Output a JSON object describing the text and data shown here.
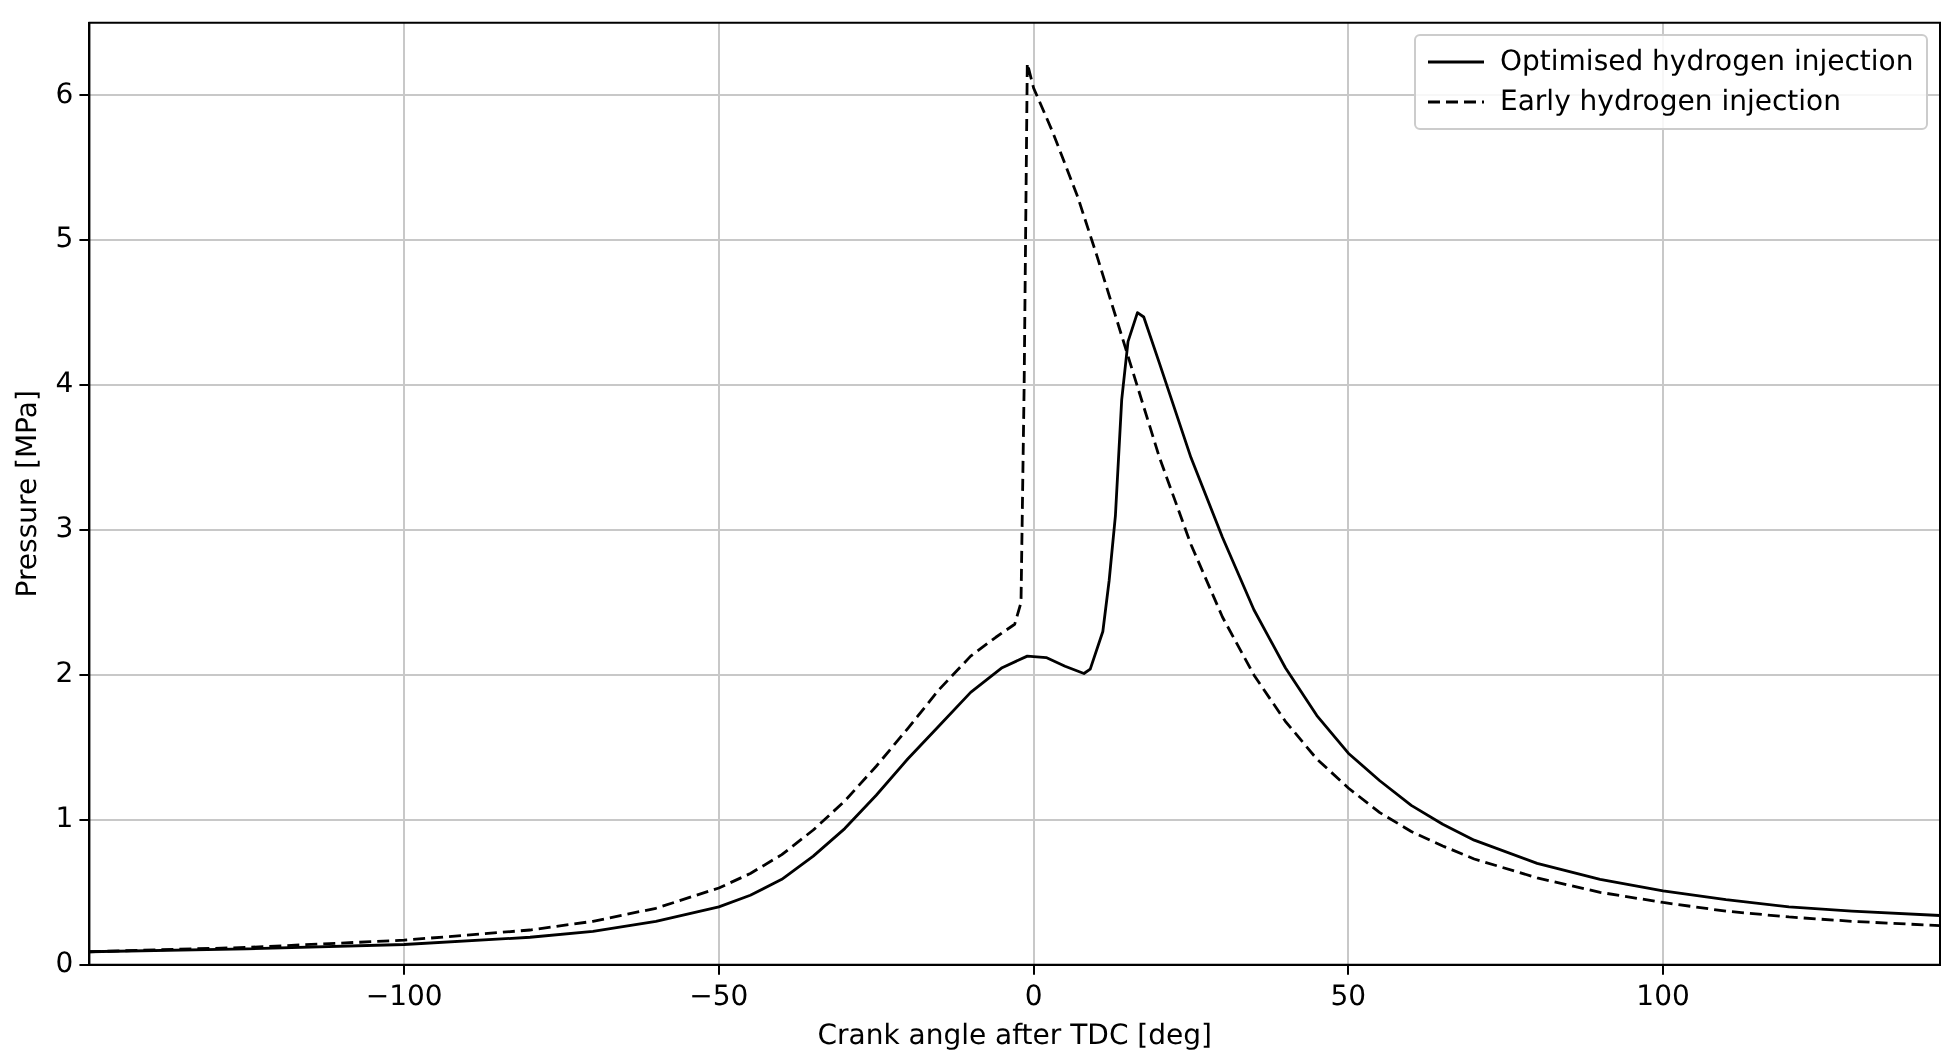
{
  "chart_data": {
    "type": "line",
    "xlabel": "Crank angle after TDC [deg]",
    "ylabel": "Pressure [MPa]",
    "xlim": [
      -150,
      144
    ],
    "xticks": [
      -100,
      -50,
      0,
      50,
      100
    ],
    "ylim": [
      0,
      6.5
    ],
    "yticks": [
      0,
      1,
      2,
      3,
      4,
      5,
      6
    ],
    "grid": true,
    "legend": "top right",
    "marker": "none",
    "series": [
      {
        "name": "Optimised hydrogen injection",
        "color": "#000000",
        "line_style": "solid",
        "x": [
          -150,
          -125,
          -100,
          -80,
          -70,
          -60,
          -50,
          -45,
          -40,
          -35,
          -30,
          -25,
          -20,
          -15,
          -10,
          -5,
          -1,
          2,
          5,
          8,
          9,
          11,
          12,
          13,
          14,
          15,
          16.5,
          17.5,
          20,
          25,
          30,
          35,
          40,
          45,
          50,
          55,
          60,
          65,
          70,
          80,
          90,
          100,
          110,
          120,
          130,
          144
        ],
        "values": [
          0.09,
          0.11,
          0.14,
          0.19,
          0.23,
          0.3,
          0.4,
          0.48,
          0.59,
          0.75,
          0.94,
          1.17,
          1.42,
          1.65,
          1.88,
          2.05,
          2.13,
          2.12,
          2.06,
          2.01,
          2.04,
          2.3,
          2.65,
          3.1,
          3.9,
          4.3,
          4.5,
          4.47,
          4.15,
          3.5,
          2.95,
          2.45,
          2.05,
          1.72,
          1.46,
          1.27,
          1.1,
          0.97,
          0.86,
          0.7,
          0.59,
          0.51,
          0.45,
          0.4,
          0.37,
          0.34
        ]
      },
      {
        "name": "Early hydrogen injection",
        "color": "#000000",
        "line_style": "dashed",
        "x": [
          -150,
          -125,
          -100,
          -80,
          -70,
          -60,
          -50,
          -45,
          -40,
          -35,
          -30,
          -25,
          -20,
          -15,
          -10,
          -6,
          -3,
          -2,
          -1.5,
          -1,
          0,
          3,
          7,
          10,
          15,
          20,
          25,
          30,
          35,
          40,
          45,
          50,
          55,
          60,
          65,
          70,
          80,
          90,
          100,
          110,
          120,
          130,
          144
        ],
        "values": [
          0.09,
          0.12,
          0.17,
          0.24,
          0.3,
          0.39,
          0.53,
          0.63,
          0.76,
          0.93,
          1.13,
          1.37,
          1.63,
          1.9,
          2.13,
          2.26,
          2.35,
          2.5,
          4.0,
          6.22,
          6.05,
          5.75,
          5.3,
          4.9,
          4.2,
          3.5,
          2.9,
          2.4,
          2.0,
          1.68,
          1.42,
          1.22,
          1.05,
          0.92,
          0.82,
          0.73,
          0.6,
          0.5,
          0.43,
          0.37,
          0.33,
          0.3,
          0.27
        ]
      }
    ]
  }
}
